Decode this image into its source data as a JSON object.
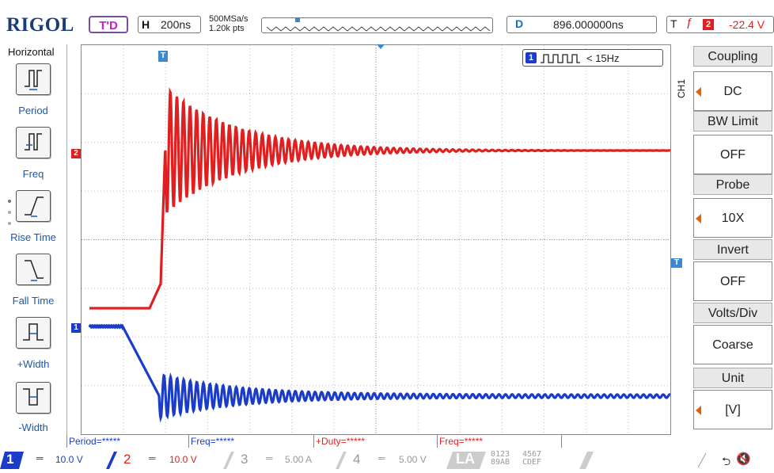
{
  "brand": "RIGOL",
  "header": {
    "trigger_status": "T'D",
    "h_label": "H",
    "timebase": "200ns",
    "sample_rate": "500MSa/s",
    "memory_depth": "1.20k pts",
    "delay_label": "D",
    "delay_value": "896.000000ns",
    "trig_label": "T",
    "trig_edge_icon": "rising-edge-icon",
    "trig_source": "2",
    "trig_level": "-22.4 V"
  },
  "left_menu": {
    "title": "Horizontal",
    "items": [
      {
        "label": "Period",
        "icon": "period-icon"
      },
      {
        "label": "Freq",
        "icon": "freq-icon"
      },
      {
        "label": "Rise Time",
        "icon": "rise-time-icon"
      },
      {
        "label": "Fall Time",
        "icon": "fall-time-icon"
      },
      {
        "label": "+Width",
        "icon": "positive-width-icon"
      },
      {
        "label": "-Width",
        "icon": "negative-width-icon"
      }
    ]
  },
  "counter": {
    "channel": "1",
    "value": "< 15Hz"
  },
  "channel_markers": {
    "ch1": "1",
    "ch2": "2",
    "trigger_marker": "T"
  },
  "right_menu": {
    "channel_tag": "CH1",
    "items": [
      {
        "label": "Coupling",
        "value": "DC"
      },
      {
        "label": "BW Limit",
        "value": "OFF"
      },
      {
        "label": "Probe",
        "value": "10X"
      },
      {
        "label": "Invert",
        "value": "OFF"
      },
      {
        "label": "Volts/Div",
        "value": "Coarse"
      },
      {
        "label": "Unit",
        "value": "[V]"
      }
    ]
  },
  "measurements": [
    {
      "text": "Period=*****",
      "color": "#1a3cc8"
    },
    {
      "text": "Freq=*****",
      "color": "#1a3cc8"
    },
    {
      "text": "+Duty=*****",
      "color": "#e02020"
    },
    {
      "text": "Freq=*****",
      "color": "#e02020"
    }
  ],
  "channels": [
    {
      "num": "1",
      "scale": "10.0 V",
      "color": "#1a3cc8"
    },
    {
      "num": "2",
      "scale": "10.0 V",
      "color": "#e02020"
    },
    {
      "num": "3",
      "scale": "5.00 A",
      "color": "#888888"
    },
    {
      "num": "4",
      "scale": "5.00 V",
      "color": "#888888"
    }
  ],
  "la": {
    "label": "LA",
    "top": [
      "0123",
      "4567"
    ],
    "bottom": [
      "89AB",
      "CDEF"
    ]
  },
  "status_icons": [
    "usb-icon",
    "speaker-muted-icon"
  ]
}
